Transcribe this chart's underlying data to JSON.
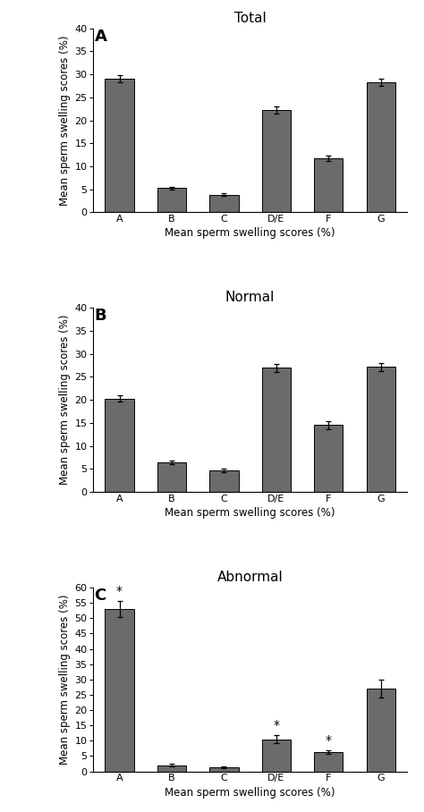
{
  "panels": [
    {
      "label": "A",
      "title": "Total",
      "categories": [
        "A",
        "B",
        "C",
        "D/E",
        "F",
        "G"
      ],
      "values": [
        29.0,
        5.3,
        3.8,
        22.3,
        11.7,
        28.3
      ],
      "errors": [
        0.8,
        0.3,
        0.3,
        0.8,
        0.6,
        0.7
      ],
      "ylim": [
        0,
        40
      ],
      "yticks": [
        0,
        5,
        10,
        15,
        20,
        25,
        30,
        35,
        40
      ],
      "star_above": {
        "A": false,
        "B": false,
        "C": false,
        "D/E": false,
        "F": false,
        "G": false
      }
    },
    {
      "label": "B",
      "title": "Normal",
      "categories": [
        "A",
        "B",
        "C",
        "D/E",
        "F",
        "G"
      ],
      "values": [
        20.3,
        6.5,
        4.7,
        27.0,
        14.5,
        27.2
      ],
      "errors": [
        0.7,
        0.4,
        0.4,
        0.9,
        0.9,
        0.9
      ],
      "ylim": [
        0,
        40
      ],
      "yticks": [
        0,
        5,
        10,
        15,
        20,
        25,
        30,
        35,
        40
      ],
      "star_above": {
        "A": false,
        "B": false,
        "C": false,
        "D/E": false,
        "F": false,
        "G": false
      }
    },
    {
      "label": "C",
      "title": "Abnormal",
      "categories": [
        "A",
        "B",
        "C",
        "D/E",
        "F",
        "G"
      ],
      "values": [
        53.0,
        2.0,
        1.3,
        10.5,
        6.2,
        27.0
      ],
      "errors": [
        2.5,
        0.4,
        0.3,
        1.2,
        0.6,
        2.8
      ],
      "ylim": [
        0,
        60
      ],
      "yticks": [
        0,
        5,
        10,
        15,
        20,
        25,
        30,
        35,
        40,
        45,
        50,
        55,
        60
      ],
      "star_above": {
        "A": true,
        "B": false,
        "C": false,
        "D/E": true,
        "F": true,
        "G": false
      }
    }
  ],
  "bar_color": "#6b6b6b",
  "bar_edgecolor": "#000000",
  "xlabel": "Mean sperm swelling scores (%)",
  "ylabel": "Mean sperm swelling scores (%)",
  "panel_label_fontsize": 13,
  "title_fontsize": 11,
  "axis_fontsize": 8.5,
  "tick_fontsize": 8
}
